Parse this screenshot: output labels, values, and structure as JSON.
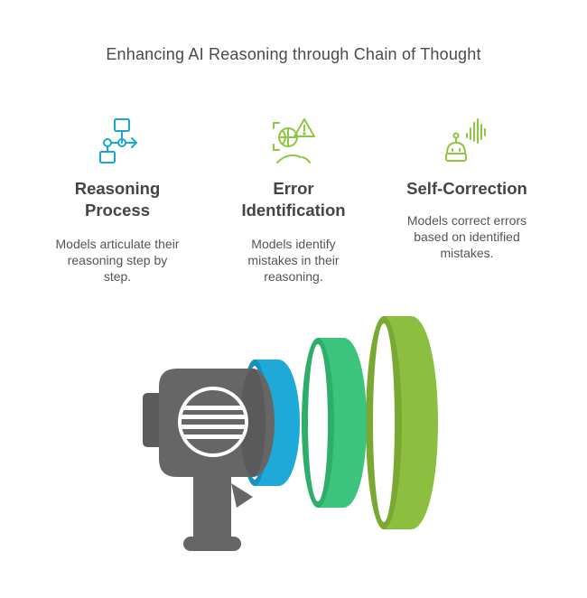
{
  "title": "Enhancing AI Reasoning through Chain of Thought",
  "steps": [
    {
      "heading": "Reasoning Process",
      "description": "Models articulate their reasoning step by step.",
      "icon": "flowchart-icon"
    },
    {
      "heading": "Error Identification",
      "description": "Models identify mistakes in their reasoning.",
      "icon": "error-scan-icon"
    },
    {
      "heading": "Self-Correction",
      "description": "Models correct errors based on identified mistakes.",
      "icon": "robot-voice-icon"
    }
  ],
  "colors": {
    "icon_stroke": "#8dc63f",
    "icon_blue": "#1aa7d8",
    "megaphone_body": "#666666",
    "wave_blue": "#1fa9d8",
    "wave_green": "#3cc47c",
    "wave_lime": "#8cbf3f"
  }
}
